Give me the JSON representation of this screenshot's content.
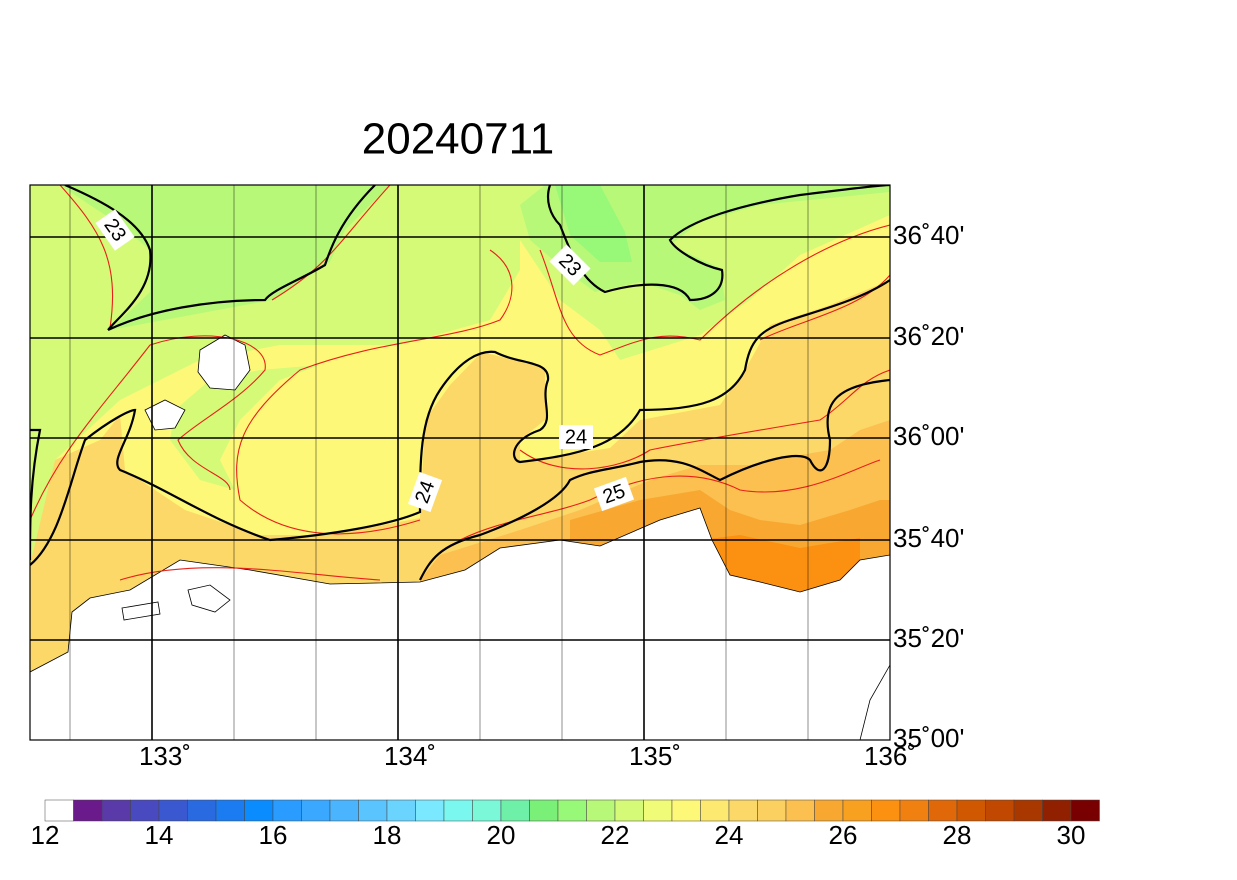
{
  "title": "20240711",
  "lon_labels": [
    "133˚",
    "134˚",
    "135˚",
    "136˚"
  ],
  "lat_labels": [
    "36˚40'",
    "36˚20'",
    "36˚00'",
    "35˚40'",
    "35˚20'",
    "35˚00'"
  ],
  "contour_labels": [
    "23",
    "23",
    "24",
    "24",
    "25"
  ],
  "colorbar": {
    "labels": [
      "12",
      "14",
      "16",
      "18",
      "20",
      "22",
      "24",
      "26",
      "28",
      "30"
    ],
    "colors": [
      "#ffffff",
      "#6a1a8a",
      "#5a3aa8",
      "#4a4ac0",
      "#3a58d0",
      "#2a6ae0",
      "#1a7cf0",
      "#0a8cff",
      "#2a9cff",
      "#3aa8ff",
      "#4ab4ff",
      "#5ac4ff",
      "#6ad4ff",
      "#7ae8ff",
      "#7af8f0",
      "#7af8d8",
      "#6ef0a8",
      "#7af078",
      "#98f878",
      "#b8f878",
      "#d4fa78",
      "#f0fb78",
      "#fef878",
      "#fde870",
      "#fcd868",
      "#fcd060",
      "#fcc050",
      "#f8a830",
      "#f8a020",
      "#fc9010",
      "#f08010",
      "#e06808",
      "#d05800",
      "#c04800",
      "#a83800",
      "#902000",
      "#780000"
    ]
  }
}
